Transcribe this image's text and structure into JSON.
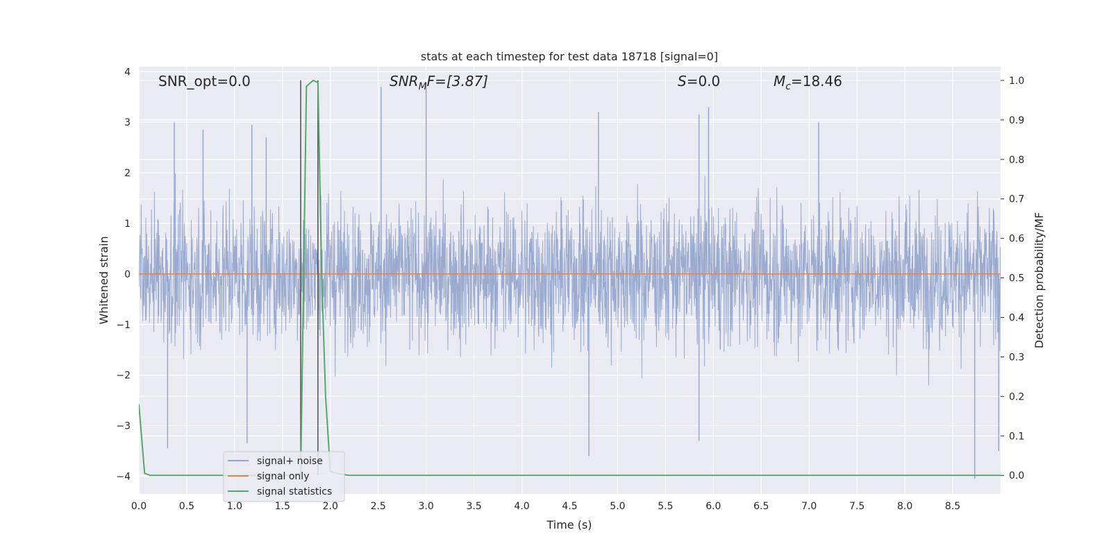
{
  "chart_data": {
    "type": "line",
    "title": "stats at each timestep for test data 18718 [signal=0]",
    "xlabel": "Time (s)",
    "ylabel": "Whitened strain",
    "y2label": "Detection probability/MF",
    "xlim": [
      0.0,
      9.0
    ],
    "ylim": [
      -4.35,
      4.1
    ],
    "y2lim": [
      -0.047,
      1.035
    ],
    "xticks": [
      "0.0",
      "0.5",
      "1.0",
      "1.5",
      "2.0",
      "2.5",
      "3.0",
      "3.5",
      "4.0",
      "4.5",
      "5.0",
      "5.5",
      "6.0",
      "6.5",
      "7.0",
      "7.5",
      "8.0",
      "8.5"
    ],
    "yticks": [
      "4",
      "3",
      "2",
      "1",
      "0",
      "−1",
      "−2",
      "−3",
      "−4"
    ],
    "y2ticks": [
      "1.0",
      "0.9",
      "0.8",
      "0.7",
      "0.6",
      "0.5",
      "0.4",
      "0.3",
      "0.2",
      "0.1",
      "0.0"
    ],
    "grid": true,
    "legend_position": "lower-left",
    "annotations": {
      "snr_opt": "SNR_opt=0.0",
      "snr_mf_main": "SNR",
      "snr_mf_sub": "M",
      "snr_mf_rest": "F=[3.87]",
      "s_sym": "S",
      "s_rest": "=0.0",
      "mc_main": "M",
      "mc_sub": "c",
      "mc_rest": "=18.46"
    },
    "vertical_lines_x": [
      1.69,
      1.87
    ],
    "series": [
      {
        "name": "signal+ noise",
        "color": "#92a4cc",
        "note_axis": "left",
        "noise_envelope": {
          "x_start": 0.0,
          "x_end": 9.0,
          "dense_band": [
            -1.7,
            1.7
          ],
          "peak_max": 3.75,
          "peak_min": -4.05
        },
        "highlighted_peaks": [
          {
            "x": 0.37,
            "y": 3.0
          },
          {
            "x": 0.67,
            "y": 2.85
          },
          {
            "x": 1.18,
            "y": 2.95
          },
          {
            "x": 1.33,
            "y": 2.7
          },
          {
            "x": 2.53,
            "y": 3.7
          },
          {
            "x": 3.0,
            "y": 3.75
          },
          {
            "x": 4.8,
            "y": 3.2
          },
          {
            "x": 5.85,
            "y": 3.15
          },
          {
            "x": 5.95,
            "y": 3.3
          },
          {
            "x": 7.1,
            "y": 3.0
          },
          {
            "x": 0.3,
            "y": -3.45
          },
          {
            "x": 1.13,
            "y": -3.35
          },
          {
            "x": 4.7,
            "y": -3.6
          },
          {
            "x": 5.85,
            "y": -3.3
          },
          {
            "x": 8.73,
            "y": -4.05
          },
          {
            "x": 8.98,
            "y": -3.5
          }
        ]
      },
      {
        "name": "signal only",
        "color": "#dd8452",
        "note_axis": "left",
        "x": [
          0.0,
          9.0
        ],
        "y": [
          0.0,
          0.0
        ]
      },
      {
        "name": "signal statistics",
        "color": "#55a868",
        "note_axis": "right",
        "x": [
          0.0,
          0.06,
          0.12,
          0.2,
          1.5,
          1.65,
          1.69,
          1.75,
          1.82,
          1.87,
          1.91,
          1.95,
          2.0,
          2.1,
          2.2,
          9.0
        ],
        "y": [
          0.18,
          0.005,
          0.0,
          0.0,
          0.0,
          0.0,
          0.0,
          0.985,
          1.0,
          0.995,
          0.5,
          0.2,
          0.01,
          0.003,
          0.0,
          0.0
        ]
      }
    ]
  }
}
